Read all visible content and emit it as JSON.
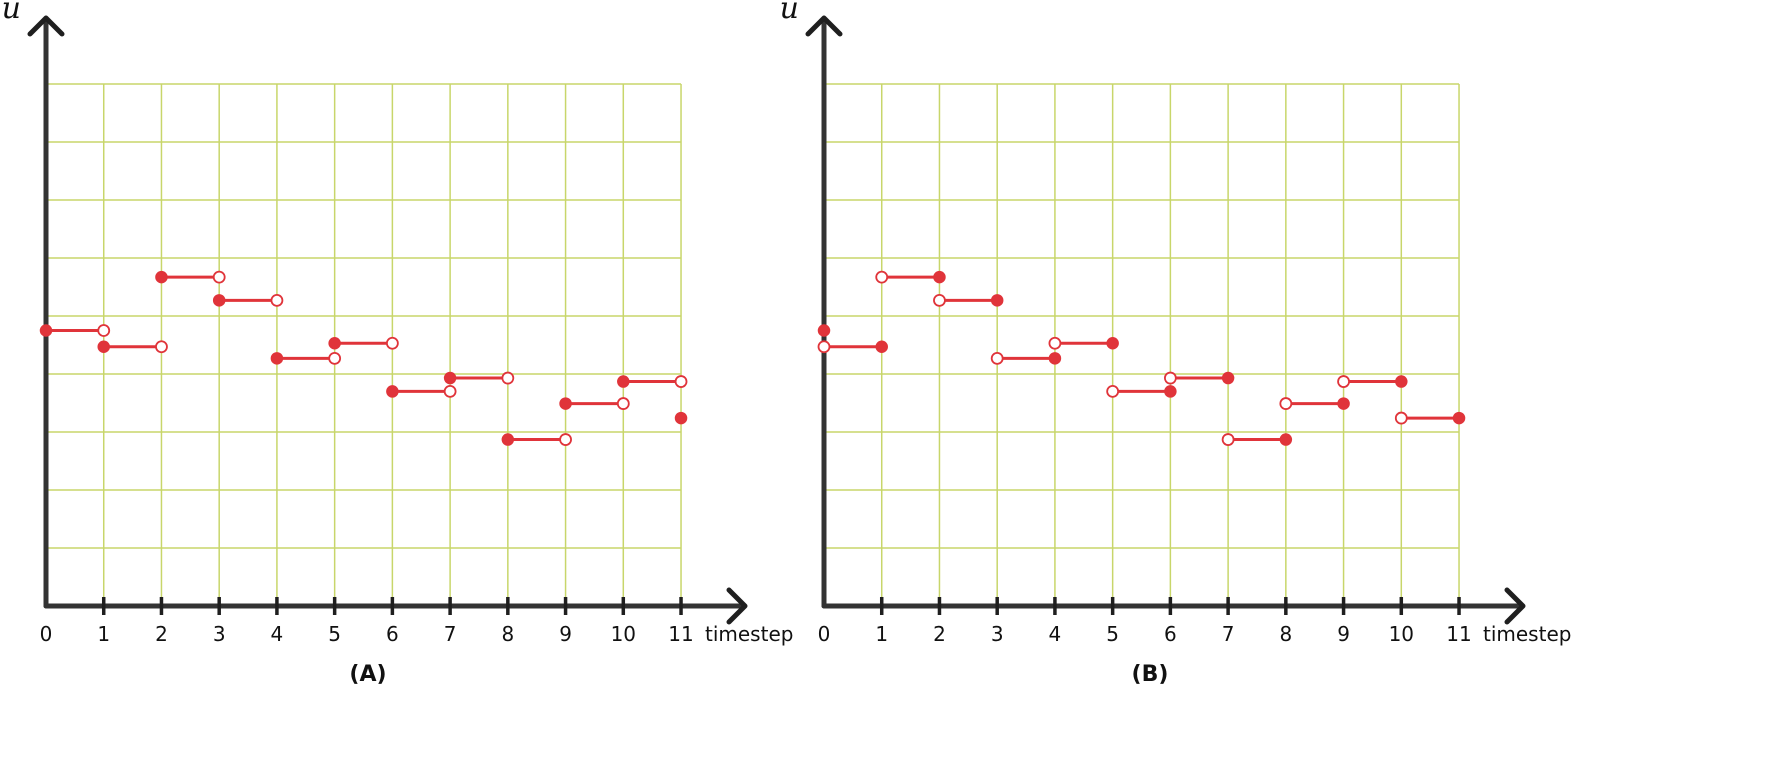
{
  "chart_data": [
    {
      "type": "step",
      "panel_label": "(A)",
      "xlabel": "timestep",
      "ylabel": "u",
      "xlim": [
        0,
        11
      ],
      "ylim": [
        0,
        9
      ],
      "grid": true,
      "categories": [
        "0",
        "1",
        "2",
        "3",
        "4",
        "5",
        "6",
        "7",
        "8",
        "9",
        "10",
        "11"
      ],
      "closed_side": "left",
      "segments": [
        {
          "x_start": 0,
          "x_end": 1,
          "y": 4.75
        },
        {
          "x_start": 1,
          "x_end": 2,
          "y": 4.47
        },
        {
          "x_start": 2,
          "x_end": 3,
          "y": 5.67
        },
        {
          "x_start": 3,
          "x_end": 4,
          "y": 5.27
        },
        {
          "x_start": 4,
          "x_end": 5,
          "y": 4.27
        },
        {
          "x_start": 5,
          "x_end": 6,
          "y": 4.53
        },
        {
          "x_start": 6,
          "x_end": 7,
          "y": 3.7
        },
        {
          "x_start": 7,
          "x_end": 8,
          "y": 3.93
        },
        {
          "x_start": 8,
          "x_end": 9,
          "y": 2.87
        },
        {
          "x_start": 9,
          "x_end": 10,
          "y": 3.49
        },
        {
          "x_start": 10,
          "x_end": 11,
          "y": 3.87
        }
      ],
      "extra_points": [
        {
          "x": 11,
          "y": 3.24,
          "filled": true
        }
      ]
    },
    {
      "type": "step",
      "panel_label": "(B)",
      "xlabel": "timestep",
      "ylabel": "u",
      "xlim": [
        0,
        11
      ],
      "ylim": [
        0,
        9
      ],
      "grid": true,
      "categories": [
        "0",
        "1",
        "2",
        "3",
        "4",
        "5",
        "6",
        "7",
        "8",
        "9",
        "10",
        "11"
      ],
      "closed_side": "right",
      "segments": [
        {
          "x_start": 0,
          "x_end": 1,
          "y": 4.47
        },
        {
          "x_start": 1,
          "x_end": 2,
          "y": 5.67
        },
        {
          "x_start": 2,
          "x_end": 3,
          "y": 5.27
        },
        {
          "x_start": 3,
          "x_end": 4,
          "y": 4.27
        },
        {
          "x_start": 4,
          "x_end": 5,
          "y": 4.53
        },
        {
          "x_start": 5,
          "x_end": 6,
          "y": 3.7
        },
        {
          "x_start": 6,
          "x_end": 7,
          "y": 3.93
        },
        {
          "x_start": 7,
          "x_end": 8,
          "y": 2.87
        },
        {
          "x_start": 8,
          "x_end": 9,
          "y": 3.49
        },
        {
          "x_start": 9,
          "x_end": 10,
          "y": 3.87
        },
        {
          "x_start": 10,
          "x_end": 11,
          "y": 3.24
        }
      ],
      "extra_points": [
        {
          "x": 0,
          "y": 4.75,
          "filled": true
        }
      ]
    }
  ]
}
